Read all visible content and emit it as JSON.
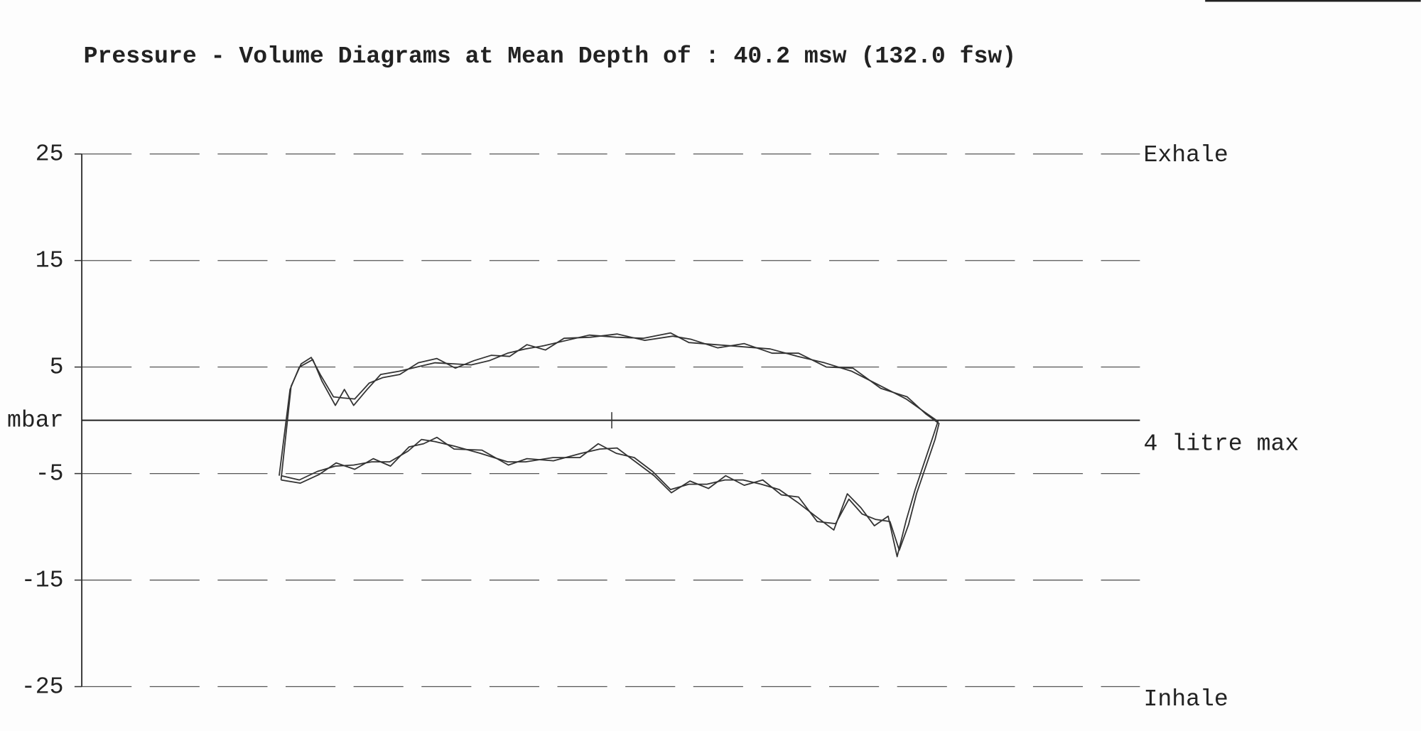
{
  "chart_data": {
    "type": "line",
    "title": "Pressure - Volume Diagrams at Mean Depth of : 40.2 msw (132.0 fsw)",
    "y_label": "mbar",
    "annotations": {
      "top": "Exhale",
      "axis": "4 litre max",
      "bottom": "Inhale"
    },
    "xlim": [
      0,
      4
    ],
    "ylim": [
      -25,
      25
    ],
    "yticks": [
      25,
      15,
      5,
      -5,
      -15,
      -25
    ],
    "grid": true,
    "series": [
      {
        "color": "#333333",
        "x": [
          0.745,
          0.786,
          0.821,
          0.872,
          0.906,
          0.957,
          0.991,
          1.026,
          1.077,
          1.128,
          1.197,
          1.265,
          1.333,
          1.402,
          1.47,
          1.538,
          1.607,
          1.675,
          1.744,
          1.812,
          1.915,
          2.017,
          2.12,
          2.222,
          2.291,
          2.393,
          2.496,
          2.598,
          2.701,
          2.803,
          2.906,
          3.009,
          3.111,
          3.179,
          3.231,
          3.214,
          3.145,
          3.111,
          3.077,
          3.043,
          2.991,
          2.94,
          2.889,
          2.838,
          2.769,
          2.701,
          2.632,
          2.564,
          2.496,
          2.427,
          2.359,
          2.291,
          2.222,
          2.154,
          2.085,
          2.017,
          1.949,
          1.88,
          1.778,
          1.675,
          1.607,
          1.504,
          1.402,
          1.333,
          1.282,
          1.231,
          1.162,
          1.094,
          1.026,
          0.957,
          0.889,
          0.821,
          0.752
        ],
        "values": [
          -5.2,
          2.9,
          5.0,
          5.7,
          3.7,
          1.4,
          2.9,
          1.4,
          2.9,
          4.3,
          4.6,
          5.0,
          5.4,
          5.3,
          5.2,
          5.6,
          6.3,
          6.7,
          7.0,
          7.4,
          8.0,
          7.8,
          7.7,
          8.2,
          7.3,
          7.1,
          6.9,
          6.7,
          6.0,
          5.4,
          4.6,
          3.3,
          2.0,
          0.8,
          -0.1,
          -1.4,
          -6.5,
          -9.4,
          -12.8,
          -9.0,
          -9.9,
          -8.2,
          -6.9,
          -10.3,
          -9.0,
          -7.7,
          -6.5,
          -6.0,
          -5.6,
          -5.6,
          -6.0,
          -6.0,
          -6.5,
          -4.8,
          -3.5,
          -3.1,
          -2.2,
          -3.5,
          -3.5,
          -3.9,
          -3.9,
          -3.1,
          -2.4,
          -2.0,
          -1.8,
          -2.9,
          -3.9,
          -3.9,
          -4.2,
          -4.3,
          -4.8,
          -5.6,
          -5.2
        ]
      },
      {
        "color": "#333333",
        "x": [
          0.752,
          0.79,
          0.828,
          0.866,
          0.9,
          0.95,
          0.985,
          1.03,
          1.085,
          1.135,
          1.2,
          1.27,
          1.34,
          1.41,
          1.48,
          1.545,
          1.615,
          1.68,
          1.75,
          1.82,
          1.92,
          2.02,
          2.125,
          2.23,
          2.3,
          2.4,
          2.5,
          2.605,
          2.705,
          2.81,
          2.91,
          3.015,
          3.115,
          3.185,
          3.235,
          3.22,
          3.15,
          3.12,
          3.085,
          3.05,
          2.995,
          2.945,
          2.895,
          2.845,
          2.775,
          2.705,
          2.64,
          2.57,
          2.5,
          2.43,
          2.365,
          2.295,
          2.225,
          2.16,
          2.09,
          2.02,
          1.955,
          1.885,
          1.78,
          1.68,
          1.61,
          1.51,
          1.405,
          1.34,
          1.29,
          1.235,
          1.165,
          1.1,
          1.03,
          0.96,
          0.895,
          0.825,
          0.752
        ],
        "values": [
          -5.6,
          3.2,
          5.3,
          5.9,
          4.3,
          2.2,
          2.1,
          2.0,
          3.5,
          4.0,
          4.3,
          5.4,
          5.8,
          4.9,
          5.6,
          6.1,
          6.0,
          7.1,
          6.6,
          7.7,
          7.8,
          8.1,
          7.5,
          7.9,
          7.6,
          6.8,
          7.2,
          6.3,
          6.3,
          5.0,
          4.9,
          3.0,
          2.2,
          0.6,
          -0.3,
          -1.8,
          -6.9,
          -9.8,
          -12.2,
          -9.5,
          -9.3,
          -8.8,
          -7.4,
          -9.7,
          -9.5,
          -7.2,
          -7.0,
          -5.6,
          -6.1,
          -5.2,
          -6.4,
          -5.7,
          -6.8,
          -5.2,
          -3.9,
          -2.6,
          -2.7,
          -3.1,
          -3.8,
          -3.6,
          -4.2,
          -2.8,
          -2.7,
          -1.6,
          -2.2,
          -2.5,
          -4.3,
          -3.6,
          -4.6,
          -4.0,
          -5.1,
          -5.9,
          -5.6
        ]
      }
    ]
  }
}
